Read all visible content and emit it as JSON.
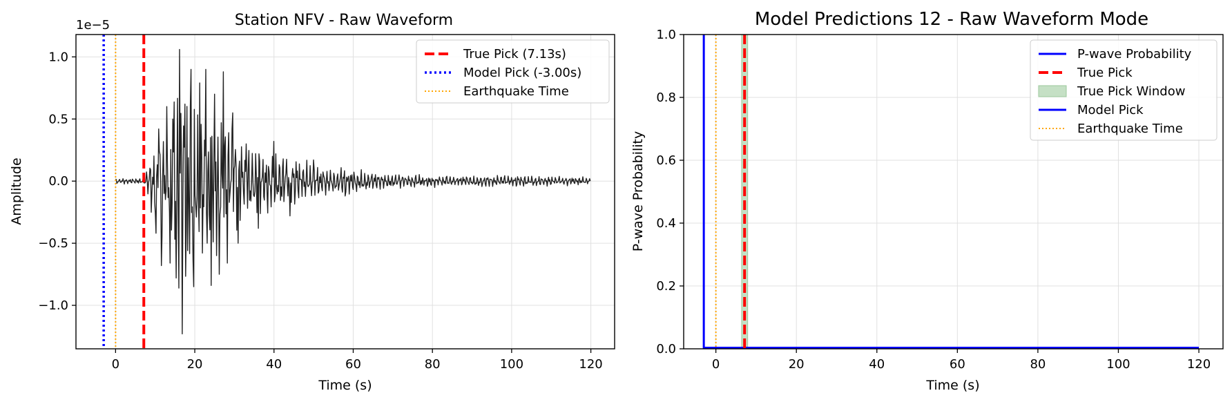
{
  "chart_data": [
    {
      "type": "line",
      "title": "Station NFV - Raw Waveform",
      "xlabel": "Time (s)",
      "ylabel": "Amplitude",
      "offset_text": "1e−5",
      "xlim": [
        -10,
        126
      ],
      "ylim": [
        -1.35,
        1.18
      ],
      "x_ticks": [
        0,
        20,
        40,
        60,
        80,
        100,
        120
      ],
      "x_tick_labels": [
        "0",
        "20",
        "40",
        "60",
        "80",
        "100",
        "120"
      ],
      "y_ticks": [
        -1.0,
        -0.5,
        0.0,
        0.5,
        1.0
      ],
      "y_tick_labels": [
        "−1.0",
        "−0.5",
        "0.0",
        "0.5",
        "1.0"
      ],
      "grid": true,
      "legend_position": "top-right",
      "series": [
        {
          "kind": "waveform",
          "color": "#222222",
          "x_range": [
            0,
            120
          ],
          "description_units": "amplitude x 1e-5",
          "envelope": [
            [
              0,
              0.03
            ],
            [
              7,
              0.03
            ],
            [
              8,
              0.15
            ],
            [
              10,
              0.55
            ],
            [
              14,
              0.75
            ],
            [
              16,
              1.15
            ],
            [
              20,
              0.85
            ],
            [
              24,
              0.8
            ],
            [
              28,
              0.7
            ],
            [
              32,
              0.45
            ],
            [
              40,
              0.35
            ],
            [
              50,
              0.18
            ],
            [
              60,
              0.12
            ],
            [
              70,
              0.08
            ],
            [
              80,
              0.06
            ],
            [
              100,
              0.06
            ],
            [
              120,
              0.04
            ]
          ],
          "peaks": [
            [
              10.2,
              -0.42
            ],
            [
              10.8,
              0.42
            ],
            [
              11.5,
              -0.68
            ],
            [
              13.0,
              0.6
            ],
            [
              13.8,
              -0.66
            ],
            [
              14.5,
              0.5
            ],
            [
              15.3,
              -0.78
            ],
            [
              16.2,
              1.06
            ],
            [
              16.8,
              -1.23
            ],
            [
              17.5,
              0.62
            ],
            [
              18.2,
              -0.56
            ],
            [
              19.0,
              0.9
            ],
            [
              19.8,
              -0.85
            ],
            [
              21.2,
              0.79
            ],
            [
              22.8,
              0.9
            ],
            [
              23.2,
              -0.5
            ],
            [
              24.2,
              -0.84
            ],
            [
              25.0,
              0.7
            ],
            [
              26.2,
              -0.75
            ],
            [
              27.2,
              0.88
            ],
            [
              28.2,
              -0.66
            ],
            [
              29.5,
              0.55
            ],
            [
              31.0,
              -0.5
            ],
            [
              33.0,
              0.3
            ],
            [
              36.0,
              -0.38
            ],
            [
              40.0,
              0.32
            ],
            [
              44.0,
              -0.28
            ],
            [
              50.0,
              0.17
            ],
            [
              58.0,
              -0.12
            ]
          ]
        }
      ],
      "vlines": [
        {
          "name": "True Pick (7.13s)",
          "x": 7.13,
          "color": "#ff0000",
          "style": "dashed"
        },
        {
          "name": "Model Pick (-3.00s)",
          "x": -3.0,
          "color": "#0000ff",
          "style": "dotted"
        },
        {
          "name": "Earthquake Time",
          "x": 0.0,
          "color": "#ffa500",
          "style": "dotted-thin"
        }
      ],
      "legend": [
        "True Pick (7.13s)",
        "Model Pick (-3.00s)",
        "Earthquake Time"
      ]
    },
    {
      "type": "line",
      "title": "Model Predictions 12 - Raw Waveform Mode",
      "xlabel": "Time (s)",
      "ylabel": "P-wave Probability",
      "xlim": [
        -8,
        126
      ],
      "ylim": [
        0,
        1.0
      ],
      "x_ticks": [
        0,
        20,
        40,
        60,
        80,
        100,
        120
      ],
      "x_tick_labels": [
        "0",
        "20",
        "40",
        "60",
        "80",
        "100",
        "120"
      ],
      "y_ticks": [
        0.0,
        0.2,
        0.4,
        0.6,
        0.8,
        1.0
      ],
      "y_tick_labels": [
        "0.0",
        "0.2",
        "0.4",
        "0.6",
        "0.8",
        "1.0"
      ],
      "grid": true,
      "legend_position": "top-right",
      "series": [
        {
          "name": "P-wave Probability",
          "color": "#0000ff",
          "x": [
            -3,
            120
          ],
          "y": [
            0,
            0
          ]
        }
      ],
      "true_pick_window": [
        6.4,
        7.9
      ],
      "vlines": [
        {
          "name": "True Pick",
          "x": 7.13,
          "color": "#ff0000",
          "style": "dashed"
        },
        {
          "name": "Model Pick",
          "x": -3.0,
          "color": "#0000ff",
          "style": "solid"
        },
        {
          "name": "Earthquake Time",
          "x": 0.0,
          "color": "#ffa500",
          "style": "dotted-thin"
        }
      ],
      "legend": [
        "P-wave Probability",
        "True Pick",
        "True Pick Window",
        "Model Pick",
        "Earthquake Time"
      ]
    }
  ]
}
